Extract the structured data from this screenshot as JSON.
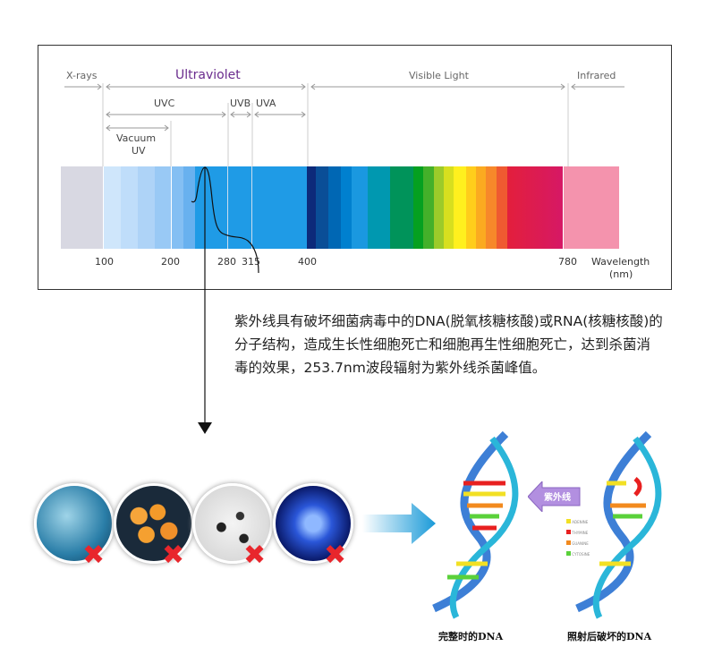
{
  "spectrum": {
    "regions": {
      "xrays": "X-rays",
      "uv": "Ultraviolet",
      "visible": "Visible Light",
      "infrared": "Infrared"
    },
    "subregions": {
      "uvc": "UVC",
      "uvb": "UVB",
      "uva": "UVA",
      "vacuum_l1": "Vacuum",
      "vacuum_l2": "UV"
    },
    "ticks": [
      "100",
      "200",
      "280",
      "315",
      "400",
      "780"
    ],
    "axis_l1": "Wavelength",
    "axis_l2": "(nm)",
    "colors": {
      "uv_accent": "#6a2c8e",
      "xray": "#d8d8e2",
      "infrared": "#f493ad"
    }
  },
  "description": "紫外线具有破坏细菌病毒中的DNA(脱氧核糖核酸)或RNA(核糖核酸)的分子结构，造成生长性细胞死亡和细胞再生性细胞死亡，达到杀菌消毒的效果，253.7nm波段辐射为紫外线杀菌峰值。",
  "dna": {
    "arrow_label": "紫外线",
    "legend": [
      "ADENINE",
      "THYMINE",
      "GUANINE",
      "CYTOSINE"
    ],
    "caption_intact": "完整时的DNA",
    "caption_damaged": "照射后破坏的DNA"
  }
}
